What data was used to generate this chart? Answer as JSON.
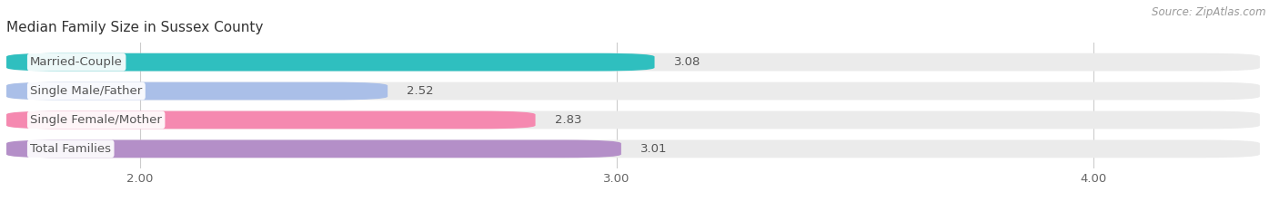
{
  "title": "Median Family Size in Sussex County",
  "source": "Source: ZipAtlas.com",
  "categories": [
    "Married-Couple",
    "Single Male/Father",
    "Single Female/Mother",
    "Total Families"
  ],
  "values": [
    3.08,
    2.52,
    2.83,
    3.01
  ],
  "bar_colors": [
    "#2fbfbf",
    "#aabfe8",
    "#f589b0",
    "#b48fc8"
  ],
  "bar_bg_color": "#ebebeb",
  "xmin": 1.72,
  "xlim": [
    1.72,
    4.35
  ],
  "xticks": [
    2.0,
    3.0,
    4.0
  ],
  "xtick_labels": [
    "2.00",
    "3.00",
    "4.00"
  ],
  "bar_height": 0.62,
  "bar_gap": 0.38,
  "label_fontsize": 9.5,
  "value_fontsize": 9.5,
  "title_fontsize": 11,
  "source_fontsize": 8.5,
  "background_color": "#ffffff",
  "text_color": "#666666",
  "title_color": "#333333",
  "grid_color": "#cccccc",
  "label_box_color": "#ffffff",
  "label_text_color": "#555555",
  "value_text_color": "#555555"
}
